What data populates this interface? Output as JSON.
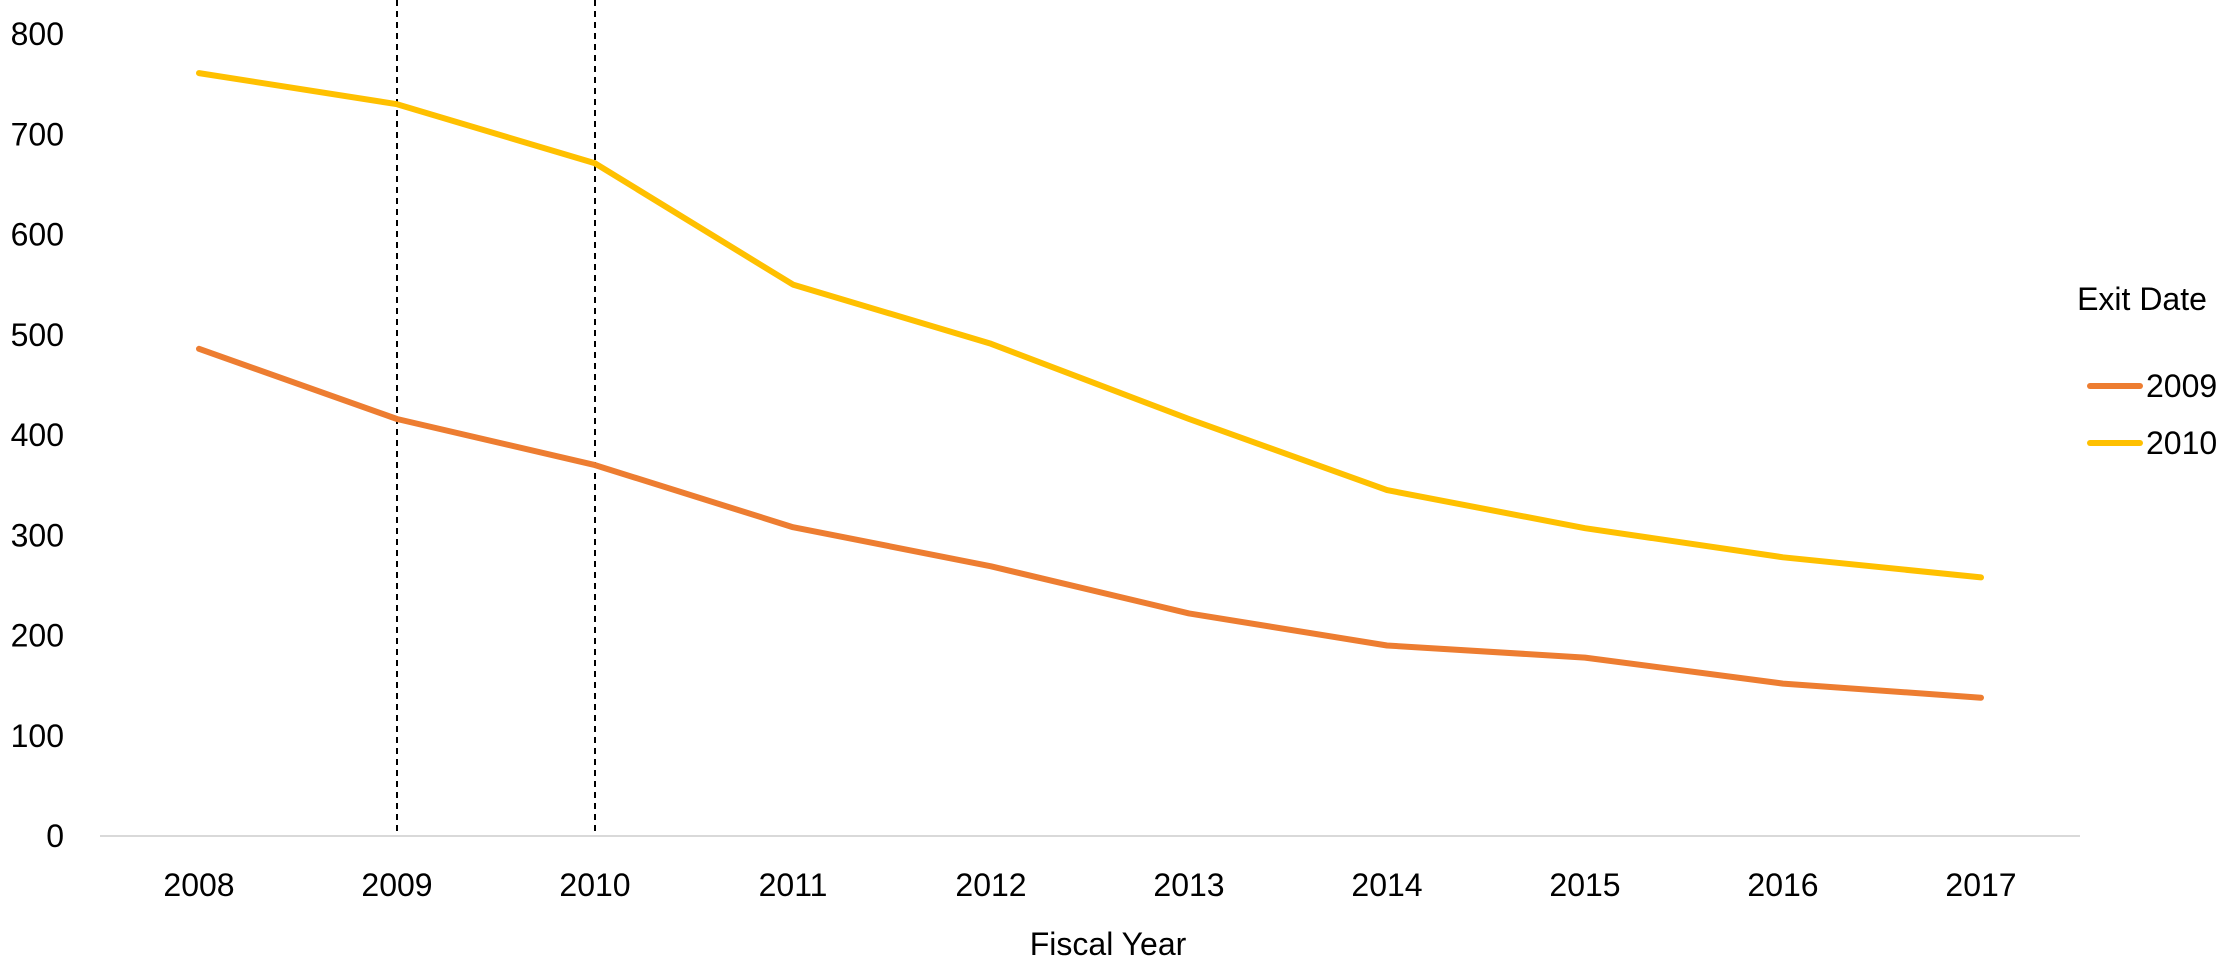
{
  "chart_data": {
    "type": "line",
    "xlabel": "Fiscal Year",
    "ylabel": "",
    "categories": [
      "2008",
      "2009",
      "2010",
      "2011",
      "2012",
      "2013",
      "2014",
      "2015",
      "2016",
      "2017"
    ],
    "ylim": [
      0,
      800
    ],
    "yticks": [
      0,
      100,
      200,
      300,
      400,
      500,
      600,
      700,
      800
    ],
    "grid": false,
    "legend": {
      "title": "Exit Date",
      "placement": "right"
    },
    "reference_lines": {
      "x": [
        "2009",
        "2010"
      ],
      "style": "dashed",
      "color": "#000000"
    },
    "series": [
      {
        "name": "2009",
        "color": "#ED7D31",
        "values": [
          486,
          416,
          370,
          308,
          269,
          222,
          190,
          178,
          152,
          138
        ]
      },
      {
        "name": "2010",
        "color": "#FFC000",
        "values": [
          761,
          730,
          671,
          550,
          491,
          416,
          345,
          307,
          278,
          258
        ]
      }
    ]
  }
}
